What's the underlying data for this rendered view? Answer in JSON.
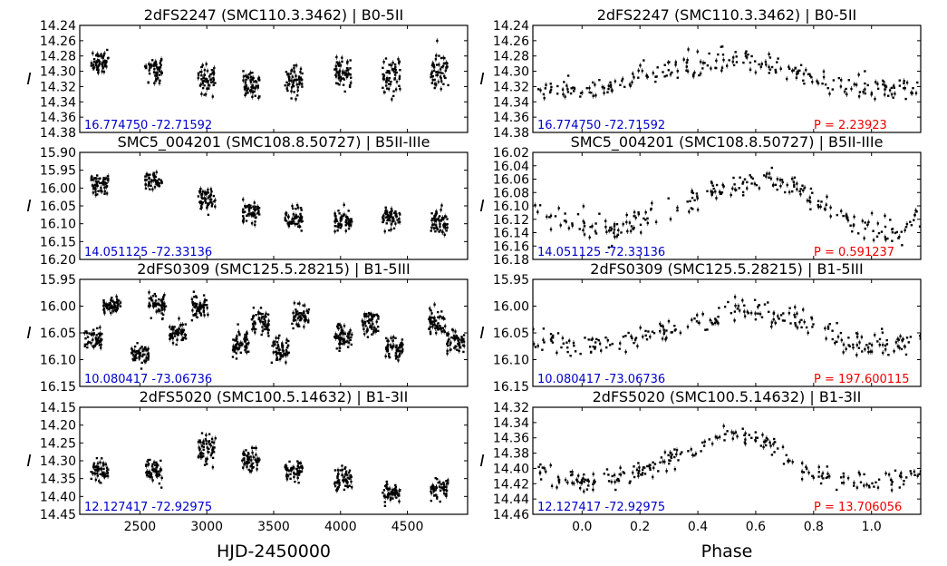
{
  "colors": {
    "coord": "#0000cc",
    "period": "#ee0000",
    "points": "#000000"
  },
  "chart_data": [
    {
      "type": "scatter",
      "title": "2dFS2247 (SMC110.3.3462) | B0-5II",
      "ylabel": "I",
      "xlabel": "",
      "ylim": [
        14.24,
        14.38
      ],
      "xlim": [
        2050,
        4950
      ],
      "y_inverted": true,
      "yticks": [
        "14.24",
        "14.26",
        "14.28",
        "14.30",
        "14.32",
        "14.34",
        "14.36",
        "14.38"
      ],
      "xticks": [],
      "coord_label": "16.774750 -72.71592",
      "period_label": "",
      "series": [
        {
          "x": [
            2200,
            2600,
            3000,
            3330,
            3650,
            4020,
            4380,
            4740
          ],
          "y": [
            14.288,
            14.297,
            14.312,
            14.318,
            14.312,
            14.302,
            14.308,
            14.3
          ],
          "spread": [
            0.014,
            0.015,
            0.016,
            0.02,
            0.02,
            0.02,
            0.022,
            0.024
          ]
        }
      ]
    },
    {
      "type": "scatter",
      "title": "2dFS2247 (SMC110.3.3462) | B0-5II",
      "ylabel": "I",
      "xlabel": "",
      "ylim": [
        14.24,
        14.38
      ],
      "xlim": [
        -0.17,
        1.17
      ],
      "y_inverted": true,
      "yticks": [
        "14.24",
        "14.26",
        "14.28",
        "14.30",
        "14.32",
        "14.34",
        "14.36",
        "14.38"
      ],
      "xticks": [],
      "coord_label": "16.774750 -72.71592",
      "period_label": "P = 2.23923",
      "series": [
        {
          "x": [
            -0.17,
            0.0,
            0.2,
            0.4,
            0.5,
            0.6,
            0.8,
            1.0,
            1.17
          ],
          "y": [
            14.322,
            14.325,
            14.31,
            14.29,
            14.283,
            14.288,
            14.31,
            14.325,
            14.322
          ],
          "spread": [
            0.014,
            0.014,
            0.014,
            0.014,
            0.014,
            0.014,
            0.014,
            0.014,
            0.014
          ]
        }
      ]
    },
    {
      "type": "scatter",
      "title": "SMC5_004201 (SMC108.8.50727) | B5II-IIIe",
      "ylabel": "I",
      "xlabel": "",
      "ylim": [
        15.88,
        16.2
      ],
      "xlim": [
        2050,
        4950
      ],
      "y_inverted": true,
      "yticks": [
        "15.90",
        "15.95",
        "16.00",
        "16.05",
        "16.10",
        "16.15",
        "16.20"
      ],
      "xticks": [],
      "coord_label": "14.051125 -72.33136",
      "period_label": "",
      "series": [
        {
          "x": [
            2200,
            2600,
            3000,
            3330,
            3650,
            4020,
            4380,
            4740
          ],
          "y": [
            15.975,
            15.965,
            16.02,
            16.06,
            16.08,
            16.085,
            16.075,
            16.09
          ],
          "spread": [
            0.025,
            0.025,
            0.03,
            0.03,
            0.03,
            0.03,
            0.025,
            0.035
          ]
        }
      ]
    },
    {
      "type": "scatter",
      "title": "SMC5_004201 (SMC108.8.50727) | B5II-IIIe",
      "ylabel": "I",
      "xlabel": "",
      "ylim": [
        16.02,
        16.18
      ],
      "xlim": [
        -0.17,
        1.17
      ],
      "y_inverted": true,
      "yticks": [
        "16.02",
        "16.04",
        "16.06",
        "16.08",
        "16.10",
        "16.12",
        "16.14",
        "16.16",
        "16.18"
      ],
      "xticks": [],
      "coord_label": "14.051125 -72.33136",
      "period_label": "P = 0.591237",
      "series": [
        {
          "x": [
            -0.17,
            0.0,
            0.1,
            0.2,
            0.4,
            0.6,
            0.7,
            0.8,
            0.95,
            1.1,
            1.17
          ],
          "y": [
            16.1,
            16.13,
            16.14,
            16.12,
            16.09,
            16.06,
            16.065,
            16.09,
            16.13,
            16.14,
            16.12
          ],
          "spread": [
            0.018,
            0.018,
            0.018,
            0.018,
            0.018,
            0.016,
            0.016,
            0.018,
            0.018,
            0.018,
            0.018
          ]
        }
      ]
    },
    {
      "type": "scatter",
      "title": "2dFS0309 (SMC125.5.28215) | B1-5III",
      "ylabel": "I",
      "xlabel": "",
      "ylim": [
        15.95,
        16.15
      ],
      "xlim": [
        2050,
        4950
      ],
      "y_inverted": true,
      "yticks": [
        "15.95",
        "16.00",
        "16.05",
        "16.10",
        "16.15"
      ],
      "xticks": [],
      "coord_label": "10.080417 -73.06736",
      "period_label": "",
      "series": [
        {
          "x": [
            2150,
            2290,
            2500,
            2630,
            2780,
            2950,
            3250,
            3400,
            3550,
            3700,
            4020,
            4220,
            4400,
            4720,
            4860
          ],
          "y": [
            16.06,
            16.0,
            16.09,
            16.0,
            16.05,
            16.0,
            16.07,
            16.03,
            16.08,
            16.02,
            16.06,
            16.03,
            16.08,
            16.03,
            16.07
          ],
          "spread": [
            0.018,
            0.015,
            0.018,
            0.02,
            0.018,
            0.02,
            0.025,
            0.02,
            0.02,
            0.02,
            0.02,
            0.02,
            0.02,
            0.02,
            0.02
          ]
        }
      ]
    },
    {
      "type": "scatter",
      "title": "2dFS0309 (SMC125.5.28215) | B1-5III",
      "ylabel": "I",
      "xlabel": "",
      "ylim": [
        15.95,
        16.15
      ],
      "xlim": [
        -0.17,
        1.17
      ],
      "y_inverted": true,
      "yticks": [
        "15.95",
        "16.00",
        "16.05",
        "16.10",
        "16.15"
      ],
      "xticks": [],
      "coord_label": "10.080417 -73.06736",
      "period_label": "P = 197.600115",
      "series": [
        {
          "x": [
            -0.17,
            0.0,
            0.2,
            0.4,
            0.55,
            0.7,
            0.9,
            1.0,
            1.17
          ],
          "y": [
            16.06,
            16.075,
            16.06,
            16.03,
            16.0,
            16.02,
            16.06,
            16.075,
            16.065
          ],
          "spread": [
            0.02,
            0.02,
            0.02,
            0.02,
            0.02,
            0.02,
            0.02,
            0.02,
            0.02
          ]
        }
      ]
    },
    {
      "type": "scatter",
      "title": "2dFS5020 (SMC100.5.14632) | B1-3II",
      "ylabel": "I",
      "xlabel": "HJD-2450000",
      "ylim": [
        14.15,
        14.45
      ],
      "xlim": [
        2050,
        4950
      ],
      "y_inverted": true,
      "yticks": [
        "14.15",
        "14.20",
        "14.25",
        "14.30",
        "14.35",
        "14.40",
        "14.45"
      ],
      "xticks": [
        "2500",
        "3000",
        "3500",
        "4000",
        "4500"
      ],
      "coord_label": "12.127417 -72.92975",
      "period_label": "",
      "series": [
        {
          "x": [
            2200,
            2600,
            3000,
            3330,
            3650,
            4020,
            4380,
            4740
          ],
          "y": [
            14.33,
            14.33,
            14.27,
            14.3,
            14.33,
            14.35,
            14.39,
            14.38
          ],
          "spread": [
            0.03,
            0.035,
            0.04,
            0.03,
            0.025,
            0.03,
            0.025,
            0.025
          ]
        }
      ]
    },
    {
      "type": "scatter",
      "title": "2dFS5020 (SMC100.5.14632) | B1-3II",
      "ylabel": "I",
      "xlabel": "Phase",
      "ylim": [
        14.32,
        14.46
      ],
      "xlim": [
        -0.17,
        1.17
      ],
      "y_inverted": true,
      "yticks": [
        "14.32",
        "14.34",
        "14.36",
        "14.38",
        "14.40",
        "14.42",
        "14.44",
        "14.46"
      ],
      "xticks": [
        "0.0",
        "0.2",
        "0.4",
        "0.6",
        "0.8",
        "1.0"
      ],
      "coord_label": "12.127417 -72.92975",
      "period_label": "P = 13.706056",
      "series": [
        {
          "x": [
            -0.17,
            0.0,
            0.2,
            0.4,
            0.5,
            0.6,
            0.7,
            0.8,
            1.0,
            1.17
          ],
          "y": [
            14.4,
            14.42,
            14.405,
            14.37,
            14.355,
            14.36,
            14.38,
            14.41,
            14.42,
            14.405
          ],
          "spread": [
            0.012,
            0.012,
            0.012,
            0.012,
            0.012,
            0.012,
            0.012,
            0.012,
            0.012,
            0.012
          ]
        }
      ]
    }
  ]
}
